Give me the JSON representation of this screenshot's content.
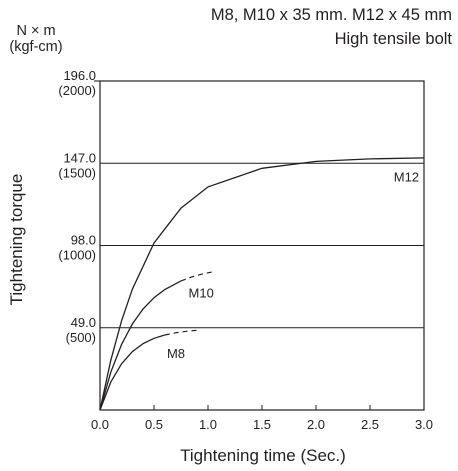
{
  "chart_data": {
    "type": "line",
    "title": "M8, M10 x 35 mm. M12 x 45 mm",
    "subtitle": "High tensile bolt",
    "xlabel": "Tightening time (Sec.)",
    "ylabel": "Tightening torque",
    "y_unit": [
      "N × m",
      "(kgf-cm)"
    ],
    "xlim": [
      0,
      3.0
    ],
    "ylim": [
      0,
      196.0
    ],
    "x_ticks": [
      "0.0",
      "0.5",
      "1.0",
      "1.5",
      "2.0",
      "2.5",
      "3.0"
    ],
    "y_ticks": [
      {
        "value": 49.0,
        "label": "49.0",
        "sub": "(500)"
      },
      {
        "value": 98.0,
        "label": "98.0",
        "sub": "(1000)"
      },
      {
        "value": 147.0,
        "label": "147.0",
        "sub": "(1500)"
      },
      {
        "value": 196.0,
        "label": "196.0",
        "sub": "(2000)"
      }
    ],
    "grid": "horizontal",
    "series": [
      {
        "name": "M12",
        "x": [
          0,
          0.1,
          0.2,
          0.3,
          0.5,
          0.75,
          1.0,
          1.5,
          2.0,
          2.5,
          3.0
        ],
        "y": [
          0,
          29.6,
          53.2,
          72.0,
          99.5,
          120.3,
          132.9,
          144.0,
          148.1,
          149.6,
          150.2
        ]
      },
      {
        "name": "M10",
        "x": [
          0,
          0.1,
          0.2,
          0.3,
          0.4,
          0.5,
          0.6,
          0.75
        ],
        "y": [
          0,
          22.5,
          39.1,
          51.3,
          60.3,
          66.9,
          71.8,
          76.9
        ],
        "dashed_x": [
          0.75,
          0.85,
          0.95,
          1.05
        ],
        "dashed_y": [
          76.9,
          79.3,
          81.1,
          82.4
        ]
      },
      {
        "name": "M8",
        "x": [
          0,
          0.1,
          0.2,
          0.3,
          0.4,
          0.5,
          0.6
        ],
        "y": [
          0,
          16.7,
          27.6,
          34.8,
          39.6,
          42.7,
          44.7
        ],
        "dashed_x": [
          0.6,
          0.7,
          0.8,
          0.9
        ],
        "dashed_y": [
          44.7,
          46.0,
          46.9,
          47.5
        ]
      }
    ]
  }
}
